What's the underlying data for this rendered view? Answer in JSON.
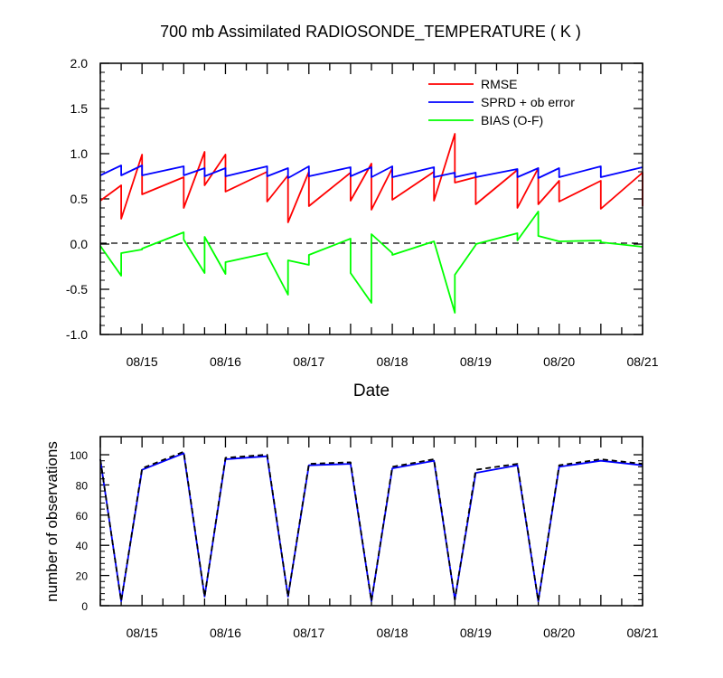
{
  "title": "700 mb Assimilated RADIOSONDE_TEMPERATURE ( K )",
  "chart_data": [
    {
      "type": "line",
      "title": "700 mb Assimilated RADIOSONDE_TEMPERATURE ( K )",
      "xlabel": "Date",
      "ylabel": "",
      "x_ticks": [
        "08/15",
        "08/16",
        "08/17",
        "08/18",
        "08/19",
        "08/20",
        "08/21"
      ],
      "y_ticks": [
        "-1.0",
        "-0.5",
        "0.0",
        "0.5",
        "1.0",
        "1.5",
        "2.0"
      ],
      "xlim_day": [
        14.5,
        21.0
      ],
      "ylim": [
        -1.0,
        2.0
      ],
      "zero_line": {
        "y": 0.0,
        "style": "dashed",
        "color": "#000000"
      },
      "legend_position": "top-right",
      "series": [
        {
          "name": "RMSE",
          "color": "#ff0000",
          "x": [
            14.5,
            14.75,
            14.75,
            15,
            15,
            15.5,
            15.5,
            15.75,
            15.75,
            16,
            16,
            16.5,
            16.5,
            16.75,
            16.75,
            17,
            17,
            17.5,
            17.5,
            17.75,
            17.75,
            18,
            18,
            18.5,
            18.5,
            18.75,
            18.75,
            19,
            19,
            19.5,
            19.5,
            19.75,
            19.75,
            20,
            20,
            20.5,
            20.5,
            21.0,
            21.0
          ],
          "y": [
            0.48,
            0.65,
            0.28,
            0.99,
            0.55,
            0.74,
            0.4,
            1.02,
            0.65,
            0.99,
            0.58,
            0.8,
            0.47,
            0.76,
            0.24,
            0.8,
            0.42,
            0.79,
            0.48,
            0.89,
            0.38,
            0.84,
            0.49,
            0.8,
            0.48,
            1.22,
            0.68,
            0.74,
            0.44,
            0.82,
            0.4,
            0.84,
            0.44,
            0.7,
            0.47,
            0.7,
            0.39,
            0.79,
            0.42
          ]
        },
        {
          "name": "SPRD + ob error",
          "color": "#0000ff",
          "x": [
            14.5,
            14.75,
            14.75,
            15,
            15,
            15.5,
            15.5,
            15.75,
            15.75,
            16,
            16,
            16.5,
            16.5,
            16.75,
            16.75,
            17,
            17,
            17.5,
            17.5,
            17.75,
            17.75,
            18,
            18,
            18.5,
            18.5,
            18.75,
            18.75,
            19,
            19,
            19.5,
            19.5,
            19.75,
            19.75,
            20,
            20,
            20.5,
            20.5,
            21.0
          ],
          "y": [
            0.76,
            0.87,
            0.76,
            0.87,
            0.76,
            0.86,
            0.76,
            0.84,
            0.75,
            0.84,
            0.75,
            0.86,
            0.75,
            0.84,
            0.73,
            0.86,
            0.75,
            0.85,
            0.75,
            0.85,
            0.74,
            0.86,
            0.74,
            0.85,
            0.74,
            0.79,
            0.74,
            0.79,
            0.74,
            0.83,
            0.74,
            0.84,
            0.73,
            0.84,
            0.74,
            0.86,
            0.74,
            0.85
          ]
        },
        {
          "name": "BIAS (O-F)",
          "color": "#00ff00",
          "x": [
            14.5,
            14.75,
            14.75,
            15,
            15,
            15.5,
            15.5,
            15.75,
            15.75,
            16,
            16,
            16.5,
            16.5,
            16.75,
            16.75,
            17,
            17,
            17.5,
            17.5,
            17.75,
            17.75,
            18,
            18,
            18.5,
            18.5,
            18.75,
            18.75,
            19,
            19,
            19.5,
            19.5,
            19.75,
            19.75,
            20,
            20,
            20.5,
            20.5,
            21.0
          ],
          "y": [
            -0.02,
            -0.35,
            -0.1,
            -0.06,
            -0.05,
            0.13,
            0.05,
            -0.32,
            0.08,
            -0.33,
            -0.2,
            -0.1,
            -0.12,
            -0.56,
            -0.18,
            -0.23,
            -0.12,
            0.06,
            -0.32,
            -0.65,
            0.11,
            -0.1,
            -0.12,
            0.03,
            0.03,
            -0.76,
            -0.34,
            -0.01,
            0.0,
            0.12,
            0.04,
            0.36,
            0.09,
            0.03,
            0.03,
            0.04,
            0.02,
            -0.03
          ]
        }
      ]
    },
    {
      "type": "line",
      "title": "",
      "xlabel": "",
      "ylabel": "number of observations",
      "x_ticks": [
        "08/15",
        "08/16",
        "08/17",
        "08/18",
        "08/19",
        "08/20",
        "08/21"
      ],
      "y_ticks": [
        "0",
        "20",
        "40",
        "60",
        "80",
        "100"
      ],
      "xlim_day": [
        14.5,
        21.0
      ],
      "ylim": [
        0,
        112
      ],
      "series": [
        {
          "name": "",
          "color": "#0000ff",
          "style": "solid",
          "x": [
            14.5,
            14.75,
            15,
            15.5,
            15.75,
            16,
            16.5,
            16.75,
            17,
            17.5,
            17.75,
            18,
            18.5,
            18.75,
            19,
            19.5,
            19.75,
            20,
            20.5,
            21.0
          ],
          "y": [
            97,
            3,
            90,
            101,
            6,
            97,
            99,
            6,
            93,
            94,
            3,
            91,
            96,
            4,
            88,
            93,
            3,
            92,
            96,
            93
          ]
        },
        {
          "name": "",
          "color": "#000000",
          "style": "dashed",
          "x": [
            14.5,
            14.75,
            15,
            15.5,
            15.75,
            16,
            16.5,
            16.75,
            17,
            17.5,
            17.75,
            18,
            18.5,
            18.75,
            19,
            19.5,
            19.75,
            20,
            20.5,
            21.0
          ],
          "y": [
            97,
            3,
            91,
            102,
            6,
            98,
            100,
            6,
            94,
            95,
            3,
            92,
            97,
            4,
            90,
            94,
            3,
            93,
            97,
            94
          ]
        }
      ]
    }
  ]
}
